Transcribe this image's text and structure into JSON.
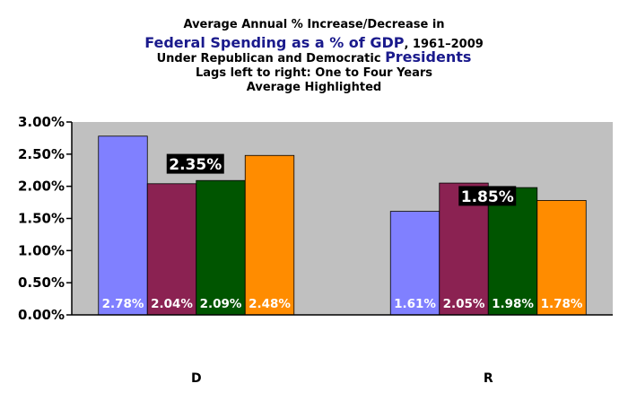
{
  "title": {
    "line1": "Average Annual % Increase/Decrease in",
    "line2_emph": "Federal Spending as a % of GDP",
    "line2_rest": ", 1961–2009",
    "line3_text": "Under Republican and Democratic ",
    "line3_emph": "Presidents",
    "line4": "Lags left to right: One to Four Years",
    "line5": "Average Highlighted"
  },
  "colors": {
    "title_text": "#000000",
    "title_emph": "#1a1a8c",
    "plot_bg": "#c0c0c0",
    "axis": "#000000",
    "label_text": "#ffffff",
    "avg_box": "#000000",
    "avg_text": "#ffffff"
  },
  "chart_data": {
    "type": "bar",
    "categories": [
      "D",
      "R"
    ],
    "series": [
      {
        "color": "#8080ff",
        "values": [
          2.78,
          1.61
        ],
        "labels": [
          "2.78%",
          "1.61%"
        ]
      },
      {
        "color": "#8b2252",
        "values": [
          2.04,
          2.05
        ],
        "labels": [
          "2.04%",
          "2.05%"
        ]
      },
      {
        "color": "#005500",
        "values": [
          2.09,
          1.98
        ],
        "labels": [
          "2.09%",
          "1.98%"
        ]
      },
      {
        "color": "#ff8c00",
        "values": [
          2.48,
          1.78
        ],
        "labels": [
          "2.48%",
          "1.78%"
        ]
      }
    ],
    "averages": [
      {
        "category": "D",
        "value": 2.35,
        "label": "2.35%"
      },
      {
        "category": "R",
        "value": 1.85,
        "label": "1.85%"
      }
    ],
    "ylim": [
      0,
      3.0
    ],
    "yticks": [
      {
        "value": 3.0,
        "label": "3.00%"
      },
      {
        "value": 2.5,
        "label": "2.50%"
      },
      {
        "value": 2.0,
        "label": "2.00%"
      },
      {
        "value": 1.5,
        "label": "1.50%"
      },
      {
        "value": 1.0,
        "label": "1.00%"
      },
      {
        "value": 0.5,
        "label": "0.50%"
      },
      {
        "value": 0.0,
        "label": "0.00%"
      }
    ],
    "grid": false,
    "legend": "none"
  }
}
